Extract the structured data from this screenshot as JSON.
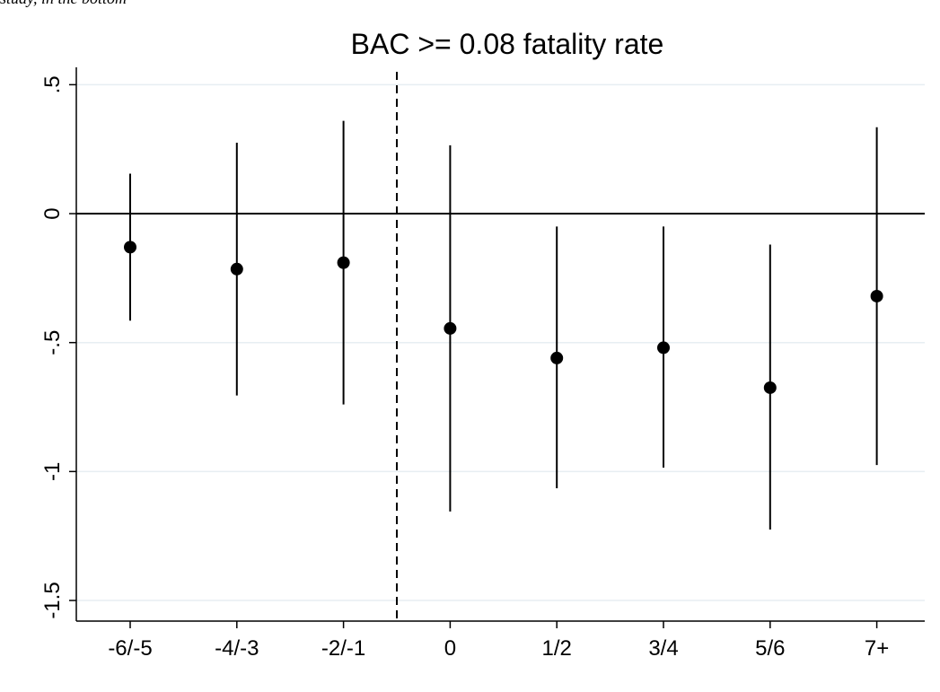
{
  "page": {
    "top_caption": "study, in the bottom"
  },
  "chart_data": {
    "type": "scatter",
    "title": "BAC >= 0.08 fatality rate",
    "xlabel": "",
    "ylabel": "",
    "categories": [
      "-6/-5",
      "-4/-3",
      "-2/-1",
      "0",
      "1/2",
      "3/4",
      "5/6",
      "7+"
    ],
    "points": [
      -0.13,
      -0.215,
      -0.19,
      -0.445,
      -0.56,
      -0.52,
      -0.675,
      -0.32
    ],
    "ci_low": [
      -0.415,
      -0.705,
      -0.74,
      -1.155,
      -1.065,
      -0.985,
      -1.225,
      -0.975
    ],
    "ci_high": [
      0.155,
      0.275,
      0.36,
      0.265,
      -0.05,
      -0.05,
      -0.12,
      0.335
    ],
    "ylim": [
      -1.58,
      0.55
    ],
    "yticks": [
      0.5,
      0,
      -0.5,
      -1,
      -1.5
    ],
    "ytick_labels": [
      ".5",
      "0",
      "-.5",
      "-1",
      "-1.5"
    ],
    "reference_line_y": 0,
    "event_line_between": [
      "-2/-1",
      "0"
    ],
    "grid": true,
    "colors": {
      "marker": "#000000",
      "grid": "#e7eef2",
      "axis": "#000000"
    }
  }
}
